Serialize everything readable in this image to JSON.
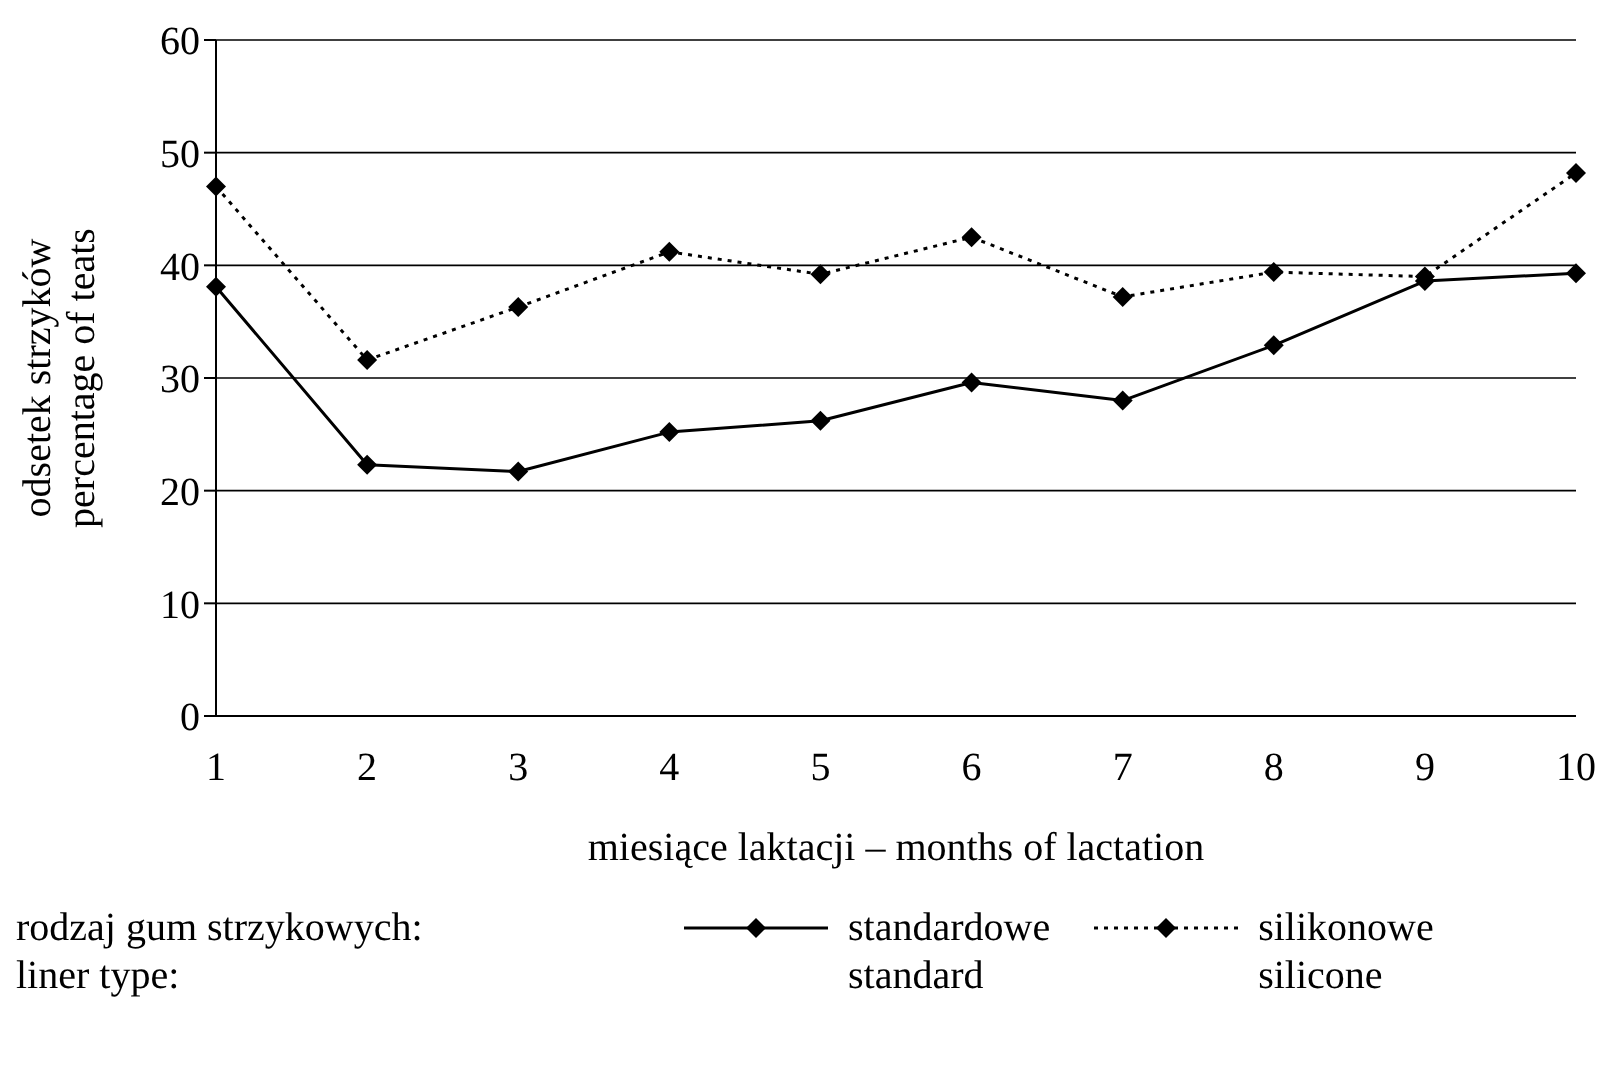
{
  "chart_data": {
    "type": "line",
    "xlabel": "miesiące laktacji –  months of lactation",
    "ylabel": "odsetek strzyków\npercentage of teats",
    "legend_title": "rodzaj gum strzykowych:\nliner type:",
    "categories": [
      "1",
      "2",
      "3",
      "4",
      "5",
      "6",
      "7",
      "8",
      "9",
      "10"
    ],
    "series": [
      {
        "name": "standardowe\nstandard",
        "color": "#000000",
        "line_style": "solid",
        "values": [
          38.1,
          22.3,
          21.7,
          25.2,
          26.2,
          29.6,
          28,
          32.9,
          38.6,
          39.3
        ]
      },
      {
        "name": "silikonowe\nsilicone",
        "color": "#000000",
        "line_style": "dotted",
        "values": [
          47,
          31.6,
          36.3,
          41.2,
          39.2,
          42.5,
          37.2,
          39.4,
          39,
          48.2
        ]
      }
    ],
    "ylim": [
      0,
      60
    ],
    "yticks": [
      0,
      10,
      20,
      30,
      40,
      50,
      60
    ],
    "grid": "y",
    "legend": "bottom",
    "marker": "diamond"
  }
}
